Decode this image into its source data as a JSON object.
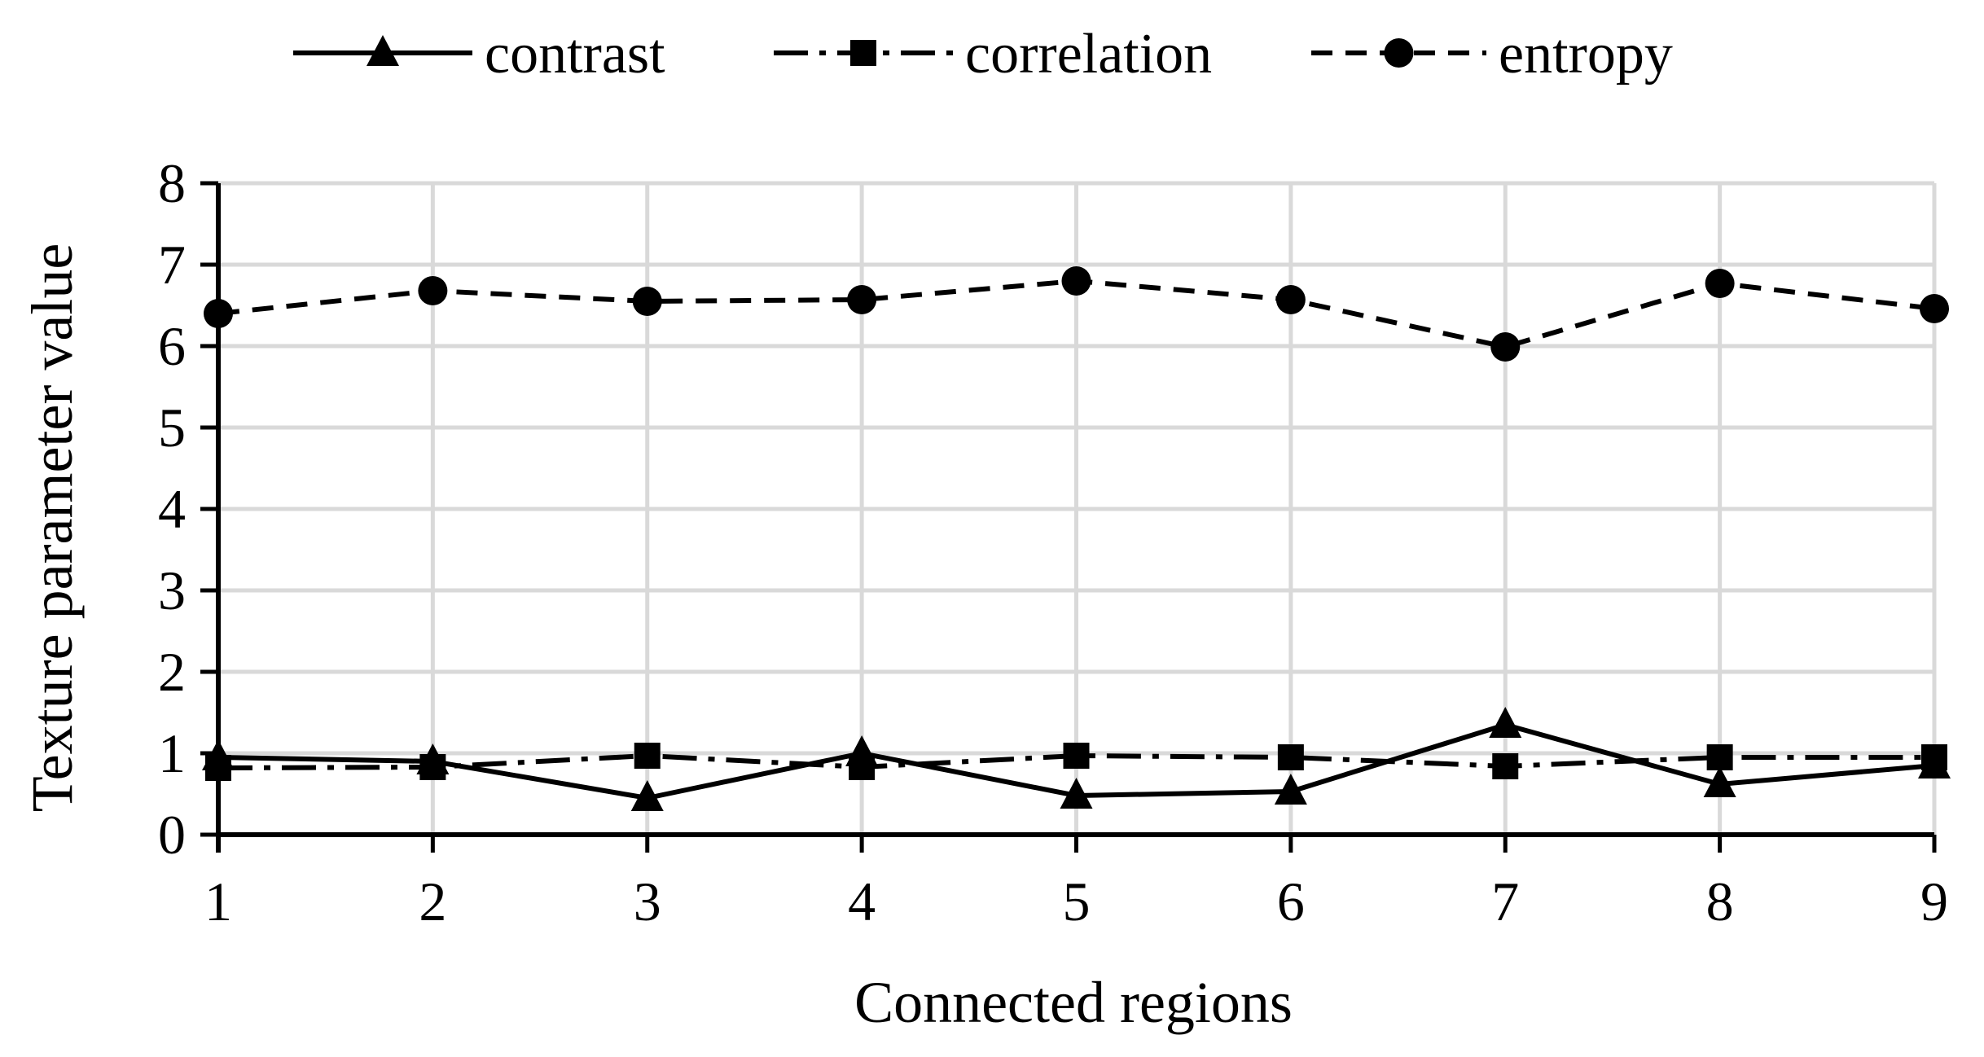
{
  "colors": {
    "line": "#000000",
    "grid": "#d9d9d9",
    "background": "#ffffff"
  },
  "chart_data": {
    "type": "line",
    "title": "",
    "xlabel": "Connected regions",
    "ylabel": "Texture parameter value",
    "x": [
      1,
      2,
      3,
      4,
      5,
      6,
      7,
      8,
      9
    ],
    "x_tick_labels": [
      "1",
      "2",
      "3",
      "4",
      "5",
      "6",
      "7",
      "8",
      "9"
    ],
    "y_tick_labels": [
      "0",
      "1",
      "2",
      "3",
      "4",
      "5",
      "6",
      "7",
      "8"
    ],
    "xlim": [
      1,
      9
    ],
    "ylim": [
      0,
      8
    ],
    "grid": true,
    "legend_position": "top",
    "series": [
      {
        "name": "contrast",
        "marker": "triangle",
        "line_style": "solid",
        "values": [
          0.95,
          0.9,
          0.45,
          1.0,
          0.48,
          0.53,
          1.35,
          0.62,
          0.85
        ]
      },
      {
        "name": "correlation",
        "marker": "square",
        "line_style": "dash-dot",
        "values": [
          0.82,
          0.83,
          0.97,
          0.83,
          0.97,
          0.95,
          0.84,
          0.95,
          0.95
        ]
      },
      {
        "name": "entropy",
        "marker": "circle",
        "line_style": "dashed",
        "values": [
          6.4,
          6.68,
          6.55,
          6.57,
          6.8,
          6.57,
          5.99,
          6.77,
          6.46
        ]
      }
    ]
  }
}
